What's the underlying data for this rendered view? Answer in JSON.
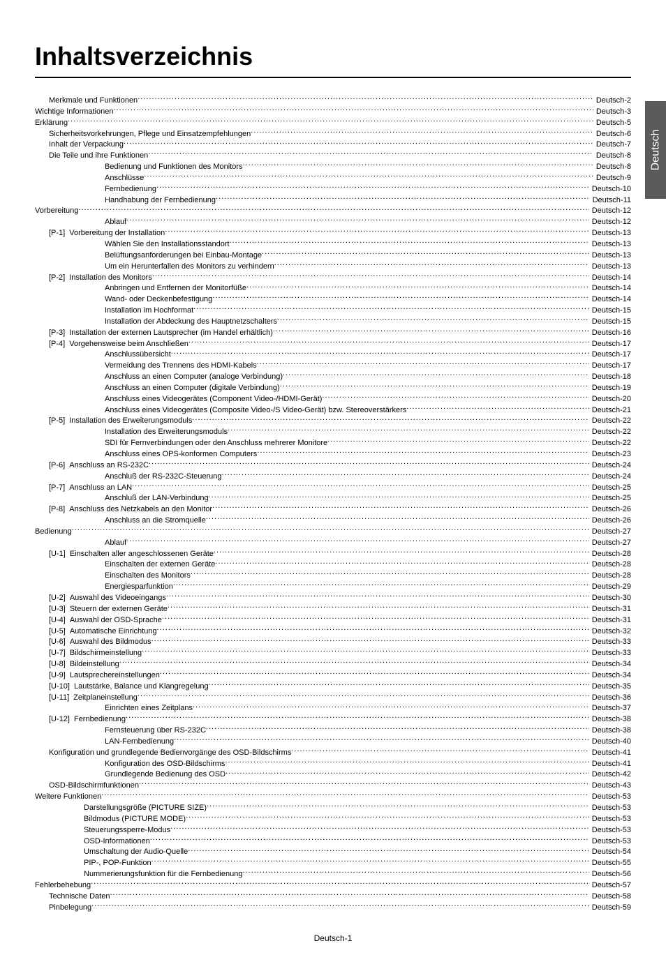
{
  "title": "Inhaltsverzeichnis",
  "sideTab": "Deutsch",
  "footer": "Deutsch-1",
  "entries": [
    {
      "indent": 1,
      "tag": "",
      "label": "Merkmale und Funktionen",
      "page": "Deutsch-2"
    },
    {
      "indent": 0,
      "tag": "",
      "label": "Wichtige Informationen",
      "page": "Deutsch-3"
    },
    {
      "indent": 0,
      "tag": "",
      "label": "Erklärung",
      "page": "Deutsch-5"
    },
    {
      "indent": 1,
      "tag": "",
      "label": "Sicherheitsvorkehrungen, Pflege und Einsatzempfehlungen",
      "page": "Deutsch-6"
    },
    {
      "indent": 1,
      "tag": "",
      "label": "Inhalt der Verpackung",
      "page": "Deutsch-7"
    },
    {
      "indent": 1,
      "tag": "",
      "label": "Die Teile und ihre Funktionen",
      "page": "Deutsch-8"
    },
    {
      "indent": 3,
      "tag": "",
      "label": "Bedienung und Funktionen des Monitors",
      "page": "Deutsch-8"
    },
    {
      "indent": 3,
      "tag": "",
      "label": "Anschlüsse",
      "page": "Deutsch-9"
    },
    {
      "indent": 3,
      "tag": "",
      "label": "Fernbedienung",
      "page": "Deutsch-10"
    },
    {
      "indent": 3,
      "tag": "",
      "label": "Handhabung der Fernbedienung",
      "page": "Deutsch-11"
    },
    {
      "indent": 0,
      "tag": "",
      "label": "Vorbereitung",
      "page": "Deutsch-12"
    },
    {
      "indent": 3,
      "tag": "",
      "label": "Ablauf",
      "page": "Deutsch-12"
    },
    {
      "indent": 1,
      "tag": "[P-1]",
      "label": "Vorbereitung der Installation",
      "page": "Deutsch-13"
    },
    {
      "indent": 3,
      "tag": "",
      "label": "Wählen Sie den Installationsstandort",
      "page": "Deutsch-13"
    },
    {
      "indent": 3,
      "tag": "",
      "label": "Belüftungsanforderungen bei Einbau-Montage",
      "page": "Deutsch-13"
    },
    {
      "indent": 3,
      "tag": "",
      "label": "Um ein Herunterfallen des Monitors zu verhindern",
      "page": "Deutsch-13"
    },
    {
      "indent": 1,
      "tag": "[P-2]",
      "label": "Installation des Monitors",
      "page": "Deutsch-14"
    },
    {
      "indent": 3,
      "tag": "",
      "label": "Anbringen und Entfernen der Monitorfüße",
      "page": "Deutsch-14"
    },
    {
      "indent": 3,
      "tag": "",
      "label": "Wand- oder Deckenbefestigung",
      "page": "Deutsch-14"
    },
    {
      "indent": 3,
      "tag": "",
      "label": "Installation im Hochformat",
      "page": "Deutsch-15"
    },
    {
      "indent": 3,
      "tag": "",
      "label": "Installation der Abdeckung des Hauptnetzschalters",
      "page": "Deutsch-15"
    },
    {
      "indent": 1,
      "tag": "[P-3]",
      "label": "Installation der externen Lautsprecher (im Handel erhältlich)",
      "page": "Deutsch-16"
    },
    {
      "indent": 1,
      "tag": "[P-4]",
      "label": "Vorgehensweise beim Anschließen",
      "page": "Deutsch-17"
    },
    {
      "indent": 3,
      "tag": "",
      "label": "Anschlussübersicht",
      "page": "Deutsch-17"
    },
    {
      "indent": 3,
      "tag": "",
      "label": "Vermeidung des Trennens des HDMI-Kabels",
      "page": "Deutsch-17"
    },
    {
      "indent": 3,
      "tag": "",
      "label": "Anschluss an einen Computer (analoge Verbindung)",
      "page": "Deutsch-18"
    },
    {
      "indent": 3,
      "tag": "",
      "label": "Anschluss an einen Computer (digitale Verbindung)",
      "page": "Deutsch-19"
    },
    {
      "indent": 3,
      "tag": "",
      "label": "Anschluss eines Videogerätes (Component Video-/HDMI-Gerät)",
      "page": "Deutsch-20"
    },
    {
      "indent": 3,
      "tag": "",
      "label": "Anschluss eines Videogerätes (Composite Video-/S Video-Gerät) bzw. Stereoverstärkers",
      "page": "Deutsch-21"
    },
    {
      "indent": 1,
      "tag": "[P-5]",
      "label": "Installation des Erweiterungsmoduls",
      "page": "Deutsch-22"
    },
    {
      "indent": 3,
      "tag": "",
      "label": "Installation des Erweiterungsmoduls",
      "page": "Deutsch-22"
    },
    {
      "indent": 3,
      "tag": "",
      "label": "SDI für Fernverbindungen oder den Anschluss mehrerer Monitore",
      "page": "Deutsch-22"
    },
    {
      "indent": 3,
      "tag": "",
      "label": "Anschluss eines OPS-konformen Computers",
      "page": "Deutsch-23"
    },
    {
      "indent": 1,
      "tag": "[P-6]",
      "label": "Anschluss an RS-232C",
      "page": "Deutsch-24"
    },
    {
      "indent": 3,
      "tag": "",
      "label": "Anschluß der RS-232C-Steuerung",
      "page": "Deutsch-24"
    },
    {
      "indent": 1,
      "tag": "[P-7]",
      "label": "Anschluss an LAN",
      "page": "Deutsch-25"
    },
    {
      "indent": 3,
      "tag": "",
      "label": "Anschluß der LAN-Verbindung",
      "page": "Deutsch-25"
    },
    {
      "indent": 1,
      "tag": "[P-8]",
      "label": "Anschluss des Netzkabels an den Monitor",
      "page": "Deutsch-26"
    },
    {
      "indent": 3,
      "tag": "",
      "label": "Anschluss an die Stromquelle",
      "page": "Deutsch-26"
    },
    {
      "indent": 0,
      "tag": "",
      "label": "Bedienung",
      "page": "Deutsch-27"
    },
    {
      "indent": 3,
      "tag": "",
      "label": "Ablauf",
      "page": "Deutsch-27"
    },
    {
      "indent": 1,
      "tag": "[U-1]",
      "label": "Einschalten aller angeschlossenen Geräte",
      "page": "Deutsch-28"
    },
    {
      "indent": 3,
      "tag": "",
      "label": "Einschalten der externen Geräte",
      "page": "Deutsch-28"
    },
    {
      "indent": 3,
      "tag": "",
      "label": "Einschalten des Monitors",
      "page": "Deutsch-28"
    },
    {
      "indent": 3,
      "tag": "",
      "label": "Energiesparfunktion",
      "page": "Deutsch-29"
    },
    {
      "indent": 1,
      "tag": "[U-2]",
      "label": "Auswahl des Videoeingangs",
      "page": "Deutsch-30"
    },
    {
      "indent": 1,
      "tag": "[U-3]",
      "label": "Steuern der externen Geräte",
      "page": "Deutsch-31"
    },
    {
      "indent": 1,
      "tag": "[U-4]",
      "label": "Auswahl der OSD-Sprache",
      "page": "Deutsch-31"
    },
    {
      "indent": 1,
      "tag": "[U-5]",
      "label": "Automatische Einrichtung",
      "page": "Deutsch-32"
    },
    {
      "indent": 1,
      "tag": "[U-6]",
      "label": "Auswahl des Bildmodus",
      "page": "Deutsch-33"
    },
    {
      "indent": 1,
      "tag": "[U-7]",
      "label": "Bildschirmeinstellung",
      "page": "Deutsch-33"
    },
    {
      "indent": 1,
      "tag": "[U-8]",
      "label": "Bildeinstellung",
      "page": "Deutsch-34"
    },
    {
      "indent": 1,
      "tag": "[U-9]",
      "label": "Lautsprechereinstellungen",
      "page": "Deutsch-34"
    },
    {
      "indent": 1,
      "tag": "[U-10]",
      "label": "Lautstärke, Balance und Klangregelung",
      "page": "Deutsch-35"
    },
    {
      "indent": 1,
      "tag": "[U-11]",
      "label": "Zeitplaneinstellung",
      "page": "Deutsch-36"
    },
    {
      "indent": 3,
      "tag": "",
      "label": "Einrichten eines Zeitplans",
      "page": "Deutsch-37"
    },
    {
      "indent": 1,
      "tag": "[U-12]",
      "label": "Fernbedienung",
      "page": "Deutsch-38"
    },
    {
      "indent": 3,
      "tag": "",
      "label": "Fernsteuerung über RS-232C",
      "page": "Deutsch-38"
    },
    {
      "indent": 3,
      "tag": "",
      "label": "LAN-Fernbedienung",
      "page": "Deutsch-40"
    },
    {
      "indent": 1,
      "tag": "",
      "label": "Konfiguration und grundlegende Bedienvorgänge des OSD-Bildschirms",
      "page": "Deutsch-41"
    },
    {
      "indent": 3,
      "tag": "",
      "label": "Konfiguration des OSD-Bildschirms",
      "page": "Deutsch-41"
    },
    {
      "indent": 3,
      "tag": "",
      "label": "Grundlegende Bedienung des OSD",
      "page": "Deutsch-42"
    },
    {
      "indent": 1,
      "tag": "",
      "label": "OSD-Bildschirmfunktionen",
      "page": "Deutsch-43"
    },
    {
      "indent": 0,
      "tag": "",
      "label": "Weitere Funktionen",
      "page": "Deutsch-53"
    },
    {
      "indent": 2,
      "tag": "",
      "label": "Darstellungsgröße (PICTURE SIZE)",
      "page": "Deutsch-53"
    },
    {
      "indent": 2,
      "tag": "",
      "label": "Bildmodus (PICTURE MODE)",
      "page": "Deutsch-53"
    },
    {
      "indent": 2,
      "tag": "",
      "label": "Steuerungssperre-Modus",
      "page": "Deutsch-53"
    },
    {
      "indent": 2,
      "tag": "",
      "label": "OSD-Informationen",
      "page": "Deutsch-53"
    },
    {
      "indent": 2,
      "tag": "",
      "label": "Umschaltung der Audio-Quelle",
      "page": "Deutsch-54"
    },
    {
      "indent": 2,
      "tag": "",
      "label": "PIP-, POP-Funktion",
      "page": "Deutsch-55"
    },
    {
      "indent": 2,
      "tag": "",
      "label": "Nummerierungsfunktion für die Fernbedienung",
      "page": "Deutsch-56"
    },
    {
      "indent": 0,
      "tag": "",
      "label": "Fehlerbehebung",
      "page": "Deutsch-57"
    },
    {
      "indent": 1,
      "tag": "",
      "label": "Technische Daten",
      "page": "Deutsch-58"
    },
    {
      "indent": 1,
      "tag": "",
      "label": "Pinbelegung",
      "page": "Deutsch-59"
    }
  ]
}
